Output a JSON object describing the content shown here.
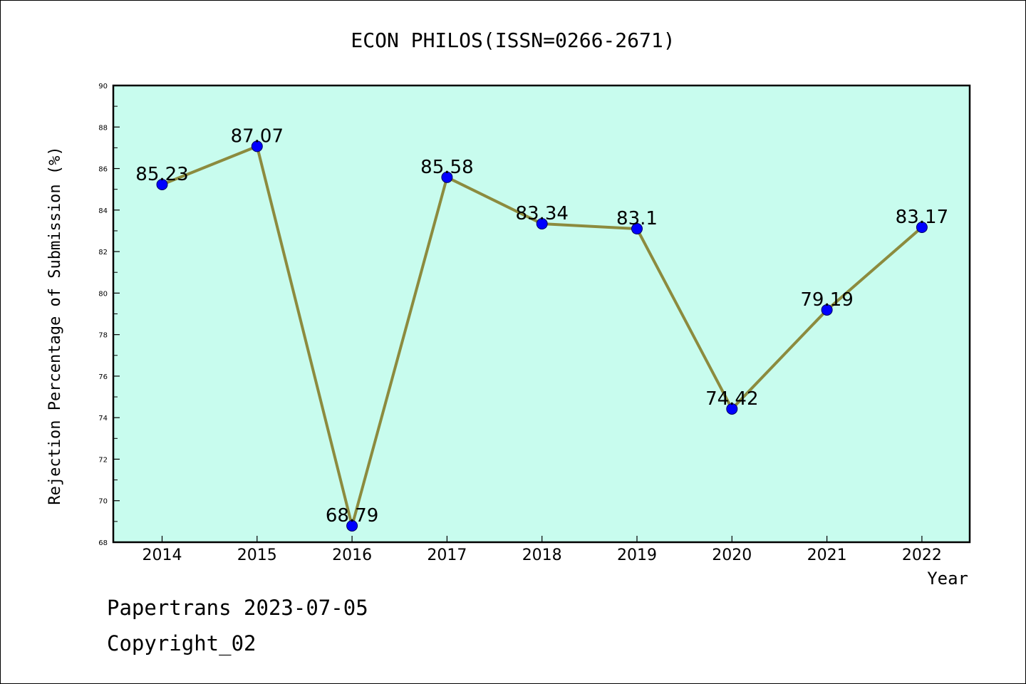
{
  "chart_data": {
    "type": "line",
    "title": "ECON PHILOS(ISSN=0266-2671)",
    "xlabel": "Year",
    "ylabel": "Rejection Percentage of Submission (%)",
    "categories": [
      "2014",
      "2015",
      "2016",
      "2017",
      "2018",
      "2019",
      "2020",
      "2021",
      "2022"
    ],
    "series": [
      {
        "values": [
          85.23,
          87.07,
          68.79,
          85.58,
          83.34,
          83.1,
          74.42,
          79.19,
          83.17
        ],
        "labels": [
          "85.23",
          "87.07",
          "68.79",
          "85.58",
          "83.34",
          "83.1",
          "74.42",
          "79.19",
          "83.17"
        ]
      }
    ],
    "ylim": [
      68,
      90
    ],
    "yticks": [
      68,
      70,
      72,
      74,
      76,
      78,
      80,
      82,
      84,
      86,
      88,
      90
    ],
    "grid": false,
    "legend": "none",
    "colors": {
      "plot_background": "#c8fcee",
      "line": "#8c8b3e",
      "marker": "#0000ff",
      "axis": "#000000"
    }
  },
  "footer": {
    "source": "Papertrans 2023-07-05",
    "copyright": "Copyright_02"
  }
}
